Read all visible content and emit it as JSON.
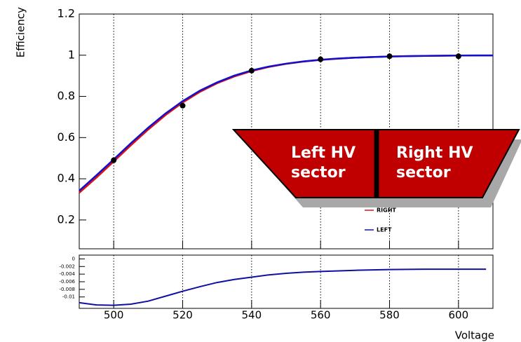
{
  "chart_data": [
    {
      "type": "line",
      "y_label": "Efficiency",
      "x": [
        490,
        495,
        500,
        505,
        510,
        515,
        520,
        525,
        530,
        535,
        540,
        545,
        550,
        555,
        560,
        565,
        570,
        575,
        580,
        585,
        590,
        595,
        600,
        605,
        610
      ],
      "series": [
        {
          "name": "RIGHT",
          "color": "#e01010",
          "values": [
            0.332,
            0.406,
            0.484,
            0.563,
            0.639,
            0.709,
            0.77,
            0.822,
            0.864,
            0.897,
            0.923,
            0.943,
            0.958,
            0.969,
            0.977,
            0.983,
            0.988,
            0.991,
            0.9935,
            0.9953,
            0.9966,
            0.9975,
            0.9982,
            0.9987,
            0.999
          ]
        },
        {
          "name": "LEFT",
          "color": "#1010d0",
          "values": [
            0.342,
            0.417,
            0.494,
            0.573,
            0.648,
            0.717,
            0.777,
            0.828,
            0.868,
            0.901,
            0.926,
            0.945,
            0.959,
            0.97,
            0.978,
            0.984,
            0.988,
            0.991,
            0.9937,
            0.9955,
            0.9967,
            0.9976,
            0.9983,
            0.9988,
            0.999
          ]
        }
      ],
      "points": {
        "x": [
          500,
          520,
          540,
          560,
          580,
          600
        ],
        "values": [
          0.49,
          0.755,
          0.925,
          0.98,
          0.995,
          0.995
        ],
        "color": "#000000"
      },
      "xlim": [
        490,
        610
      ],
      "ylim": [
        0.06,
        1.2
      ],
      "xticks": [
        500,
        520,
        540,
        560,
        580,
        600
      ],
      "yticks": [
        0.2,
        0.4,
        0.6,
        0.8,
        1,
        1.2
      ],
      "grid_x": true,
      "annotations": [
        {
          "lines": [
            "Left HV",
            "sector"
          ]
        },
        {
          "lines": [
            "Right HV",
            "sector"
          ]
        }
      ],
      "annotation_color": "#c00000"
    },
    {
      "type": "step",
      "x_label": "Voltage",
      "x": [
        490,
        495,
        500,
        505,
        510,
        515,
        520,
        525,
        530,
        535,
        540,
        545,
        550,
        555,
        560,
        570,
        580,
        590,
        600,
        608
      ],
      "values": [
        -0.0115,
        -0.0121,
        -0.0122,
        -0.0119,
        -0.0111,
        -0.0098,
        -0.0085,
        -0.0073,
        -0.0062,
        -0.0054,
        -0.0048,
        -0.0042,
        -0.0038,
        -0.0035,
        -0.0033,
        -0.003,
        -0.0028,
        -0.0027,
        -0.0027,
        -0.0027
      ],
      "color": "#1010a0",
      "xlim": [
        490,
        610
      ],
      "ylim": [
        -0.013,
        0.001
      ],
      "xticks": [
        500,
        520,
        540,
        560,
        580,
        600
      ],
      "yticks": [
        0,
        -0.002,
        -0.004,
        -0.006,
        -0.008,
        -0.01
      ],
      "grid_x": true
    }
  ]
}
